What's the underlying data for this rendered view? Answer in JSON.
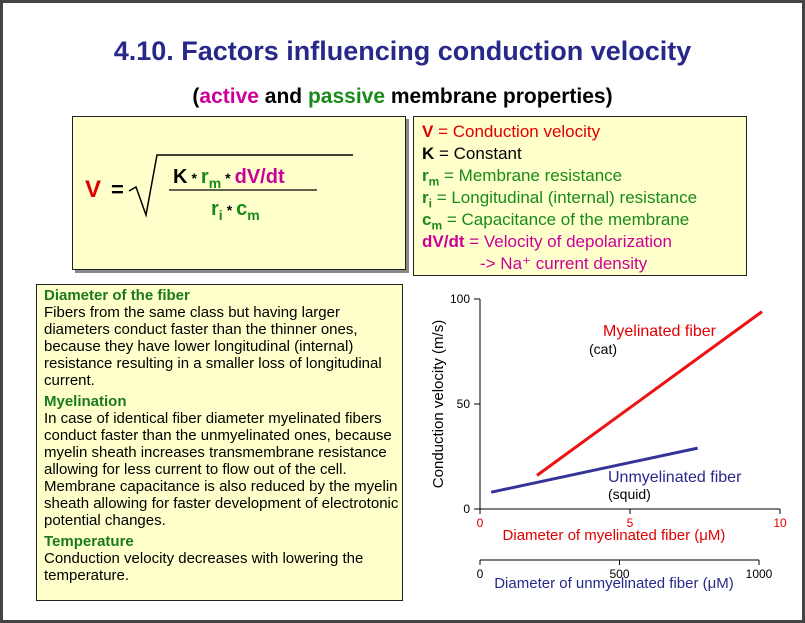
{
  "title": "4.10. Factors influencing conduction velocity",
  "subtitle": {
    "open": "(",
    "active": "active",
    "and": " and ",
    "passive": "passive",
    "rest": " membrane properties)"
  },
  "formula": {
    "lhs": "V",
    "equals": "=",
    "num_k": "K",
    "op1": "*",
    "num_r": "r",
    "num_r_sub": "m",
    "op2": "*",
    "num_dvdt": "dV/dt",
    "den_r": "r",
    "den_r_sub": "i",
    "op3": "*",
    "den_c": "c",
    "den_c_sub": "m"
  },
  "legend": {
    "v_sym": "V",
    "v_text": " = Conduction velocity",
    "k_sym": "K",
    "k_text": " = Constant",
    "rm_sym": "r",
    "rm_sub": "m",
    "rm_text": " = Membrane resistance",
    "ri_sym": "r",
    "ri_sub": "i",
    "ri_text": " = Longitudinal (internal) resistance",
    "cm_sym": "c",
    "cm_sub": "m",
    "cm_text": " = Capacitance of the membrane",
    "dvdt_sym": "dV/dt",
    "dvdt_text": " = Velocity of depolarization",
    "na_text": "-> Na⁺ current density"
  },
  "text": {
    "diameter_head": "Diameter of the fiber",
    "diameter_body": "Fibers from the same class but having larger diameters conduct faster than the thinner ones, because they have lower longitudinal (internal) resistance resulting in a smaller loss of longitudinal current.",
    "myelination_head": "Myelination",
    "myelination_body": "In case of identical fiber diameter myelinated fibers conduct faster than the unmyelinated ones, because myelin sheath increases transmembrane resistance allowing for less current to flow out of the cell. Membrane capacitance is also reduced by the myelin sheath allowing for faster development of electrotonic potential changes.",
    "temperature_head": "Temperature",
    "temperature_body": "Conduction velocity decreases with lowering the temperature."
  },
  "chart_data": {
    "type": "line",
    "ylabel": "Conduction velocity (m/s)",
    "ylim": [
      0,
      100
    ],
    "yticks": [
      "0",
      "50",
      "100"
    ],
    "x_axes": [
      {
        "label": "Diameter of myelinated fiber (μM)",
        "range": [
          0,
          10
        ],
        "ticks": [
          "0",
          "5",
          "10"
        ],
        "color": "#e00000"
      },
      {
        "label": "Diameter of unmyelinated fiber (μM)",
        "range": [
          0,
          1000
        ],
        "ticks": [
          "0",
          "500",
          "1000"
        ],
        "color": "#28288a"
      }
    ],
    "series": [
      {
        "name": "Myelinated fiber",
        "note": "(cat)",
        "color": "#ee1111",
        "axis": 0,
        "x": [
          1.9,
          9.4
        ],
        "y": [
          16,
          94
        ]
      },
      {
        "name": "Unmyelinated fiber",
        "note": "(squid)",
        "color": "#333399",
        "axis": 1,
        "x": [
          40,
          780
        ],
        "y": [
          8,
          29
        ]
      }
    ],
    "grid": false
  }
}
